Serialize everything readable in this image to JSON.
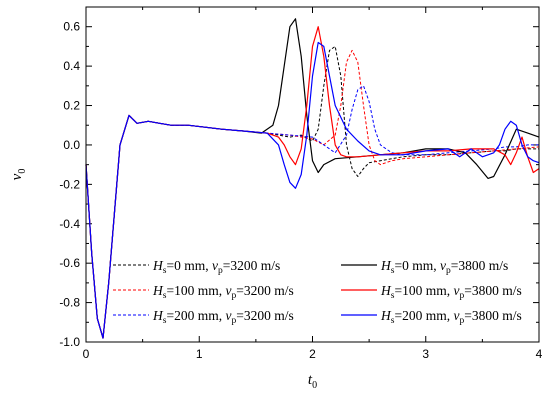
{
  "chart_data": {
    "type": "line",
    "xlabel": "t",
    "xlabel_sub": "0",
    "ylabel": "v",
    "ylabel_sub": "0",
    "xlim": [
      0,
      4
    ],
    "ylim": [
      -1.0,
      0.7
    ],
    "x_ticks": [
      0,
      1,
      2,
      3,
      4
    ],
    "x_tick_labels": [
      "0",
      "1",
      "2",
      "3",
      "4"
    ],
    "y_ticks": [
      -1.0,
      -0.8,
      -0.6,
      -0.4,
      -0.2,
      0.0,
      0.2,
      0.4,
      0.6
    ],
    "y_tick_labels": [
      "-1.0",
      "-0.8",
      "-0.6",
      "-0.4",
      "-0.2",
      "0.0",
      "0.2",
      "0.4",
      "0.6"
    ],
    "grid": false,
    "legend_position": "bottom-center",
    "legend_columns": 2,
    "series": [
      {
        "hs": "0",
        "vp": "3200",
        "color": "#000000",
        "dash": true,
        "x": [
          0,
          0.05,
          0.1,
          0.15,
          0.2,
          0.3,
          0.38,
          0.45,
          0.55,
          0.65,
          0.75,
          0.9,
          1.05,
          1.2,
          1.4,
          1.6,
          1.8,
          1.9,
          2.0,
          2.05,
          2.1,
          2.15,
          2.2,
          2.25,
          2.3,
          2.35,
          2.4,
          2.45,
          2.5,
          2.6,
          2.7,
          2.8,
          3.0,
          3.2,
          3.4,
          3.6,
          3.7,
          3.8,
          3.9,
          4.0
        ],
        "y": [
          -0.1,
          -0.55,
          -0.88,
          -0.98,
          -0.7,
          0.0,
          0.15,
          0.11,
          0.12,
          0.11,
          0.1,
          0.1,
          0.09,
          0.08,
          0.07,
          0.06,
          0.04,
          0.05,
          0.02,
          0.08,
          0.3,
          0.48,
          0.5,
          0.35,
          0.0,
          -0.12,
          -0.16,
          -0.12,
          -0.09,
          -0.08,
          -0.07,
          -0.06,
          -0.05,
          -0.05,
          -0.04,
          -0.03,
          -0.03,
          -0.02,
          -0.02,
          -0.02
        ]
      },
      {
        "hs": "100",
        "vp": "3200",
        "color": "#ff0000",
        "dash": true,
        "x": [
          0,
          0.05,
          0.1,
          0.15,
          0.2,
          0.3,
          0.38,
          0.45,
          0.55,
          0.65,
          0.75,
          0.9,
          1.05,
          1.2,
          1.4,
          1.6,
          1.8,
          2.0,
          2.1,
          2.2,
          2.25,
          2.3,
          2.35,
          2.4,
          2.45,
          2.5,
          2.55,
          2.6,
          2.7,
          2.8,
          3.0,
          3.2,
          3.4,
          3.6,
          3.8,
          4.0
        ],
        "y": [
          -0.1,
          -0.55,
          -0.88,
          -0.98,
          -0.7,
          0.0,
          0.15,
          0.11,
          0.12,
          0.11,
          0.1,
          0.1,
          0.09,
          0.08,
          0.07,
          0.06,
          0.05,
          0.03,
          0.0,
          0.05,
          0.2,
          0.42,
          0.48,
          0.42,
          0.2,
          0.0,
          -0.08,
          -0.1,
          -0.08,
          -0.07,
          -0.06,
          -0.05,
          -0.04,
          -0.03,
          -0.02,
          -0.01
        ]
      },
      {
        "hs": "200",
        "vp": "3200",
        "color": "#0000ff",
        "dash": true,
        "x": [
          0,
          0.05,
          0.1,
          0.15,
          0.2,
          0.3,
          0.38,
          0.45,
          0.55,
          0.65,
          0.75,
          0.9,
          1.05,
          1.2,
          1.4,
          1.6,
          1.8,
          2.0,
          2.1,
          2.2,
          2.3,
          2.35,
          2.4,
          2.45,
          2.5,
          2.55,
          2.6,
          2.7,
          2.8,
          3.0,
          3.2,
          3.4,
          3.6,
          3.7,
          3.8,
          3.9,
          4.0
        ],
        "y": [
          -0.1,
          -0.55,
          -0.88,
          -0.98,
          -0.7,
          0.0,
          0.15,
          0.11,
          0.12,
          0.11,
          0.1,
          0.1,
          0.09,
          0.08,
          0.07,
          0.06,
          0.05,
          0.04,
          0.0,
          -0.04,
          0.05,
          0.18,
          0.28,
          0.3,
          0.22,
          0.08,
          0.0,
          -0.04,
          -0.05,
          -0.05,
          -0.04,
          -0.03,
          -0.02,
          -0.01,
          -0.01,
          0.0,
          0.0
        ]
      },
      {
        "hs": "0",
        "vp": "3800",
        "color": "#000000",
        "dash": false,
        "x": [
          0,
          0.05,
          0.1,
          0.15,
          0.2,
          0.3,
          0.38,
          0.45,
          0.55,
          0.65,
          0.75,
          0.9,
          1.05,
          1.2,
          1.4,
          1.55,
          1.65,
          1.7,
          1.75,
          1.8,
          1.85,
          1.9,
          1.95,
          2.0,
          2.05,
          2.1,
          2.2,
          2.4,
          2.6,
          2.8,
          3.0,
          3.2,
          3.35,
          3.45,
          3.55,
          3.6,
          3.7,
          3.8,
          3.9,
          4.0
        ],
        "y": [
          -0.1,
          -0.55,
          -0.88,
          -0.98,
          -0.7,
          0.0,
          0.15,
          0.11,
          0.12,
          0.11,
          0.1,
          0.1,
          0.09,
          0.08,
          0.07,
          0.06,
          0.1,
          0.2,
          0.4,
          0.6,
          0.64,
          0.45,
          0.15,
          -0.08,
          -0.14,
          -0.1,
          -0.07,
          -0.06,
          -0.05,
          -0.04,
          -0.02,
          -0.02,
          -0.04,
          -0.1,
          -0.17,
          -0.16,
          -0.05,
          0.08,
          0.06,
          0.04
        ]
      },
      {
        "hs": "100",
        "vp": "3800",
        "color": "#ff0000",
        "dash": false,
        "x": [
          0,
          0.05,
          0.1,
          0.15,
          0.2,
          0.3,
          0.38,
          0.45,
          0.55,
          0.65,
          0.75,
          0.9,
          1.05,
          1.2,
          1.4,
          1.6,
          1.7,
          1.75,
          1.8,
          1.85,
          1.9,
          1.95,
          2.0,
          2.05,
          2.1,
          2.15,
          2.2,
          2.25,
          2.3,
          2.4,
          2.6,
          2.8,
          3.0,
          3.2,
          3.4,
          3.6,
          3.7,
          3.75,
          3.8,
          3.85,
          3.9,
          3.95,
          4.0
        ],
        "y": [
          -0.1,
          -0.55,
          -0.88,
          -0.98,
          -0.7,
          0.0,
          0.15,
          0.11,
          0.12,
          0.11,
          0.1,
          0.1,
          0.09,
          0.08,
          0.07,
          0.06,
          0.04,
          0.0,
          -0.06,
          -0.1,
          -0.02,
          0.2,
          0.5,
          0.6,
          0.45,
          0.2,
          0.0,
          -0.05,
          -0.06,
          -0.06,
          -0.05,
          -0.04,
          -0.03,
          -0.03,
          -0.02,
          -0.02,
          -0.05,
          -0.1,
          -0.04,
          0.04,
          -0.06,
          -0.14,
          -0.12
        ]
      },
      {
        "hs": "200",
        "vp": "3800",
        "color": "#0000ff",
        "dash": false,
        "x": [
          0,
          0.05,
          0.1,
          0.15,
          0.2,
          0.3,
          0.38,
          0.45,
          0.55,
          0.65,
          0.75,
          0.9,
          1.05,
          1.2,
          1.4,
          1.6,
          1.7,
          1.75,
          1.8,
          1.85,
          1.9,
          1.95,
          2.0,
          2.05,
          2.1,
          2.15,
          2.2,
          2.3,
          2.4,
          2.5,
          2.6,
          2.8,
          3.0,
          3.2,
          3.3,
          3.4,
          3.5,
          3.6,
          3.65,
          3.7,
          3.75,
          3.8,
          3.85,
          3.9,
          3.95,
          4.0
        ],
        "y": [
          -0.1,
          -0.55,
          -0.88,
          -0.98,
          -0.7,
          0.0,
          0.15,
          0.11,
          0.12,
          0.11,
          0.1,
          0.1,
          0.09,
          0.08,
          0.07,
          0.06,
          0.0,
          -0.1,
          -0.19,
          -0.22,
          -0.15,
          0.05,
          0.35,
          0.52,
          0.5,
          0.35,
          0.2,
          0.08,
          0.02,
          -0.03,
          -0.05,
          -0.05,
          -0.03,
          -0.02,
          -0.06,
          -0.02,
          -0.06,
          -0.04,
          0.0,
          0.08,
          0.12,
          0.1,
          0.0,
          -0.06,
          -0.08,
          -0.09
        ]
      }
    ]
  },
  "legend_units": {
    "hs_prefix": "H",
    "hs_sub": "s",
    "hs_unit": " mm, ",
    "vp_prefix": "v",
    "vp_sub": "p",
    "vp_unit": " m/s"
  }
}
